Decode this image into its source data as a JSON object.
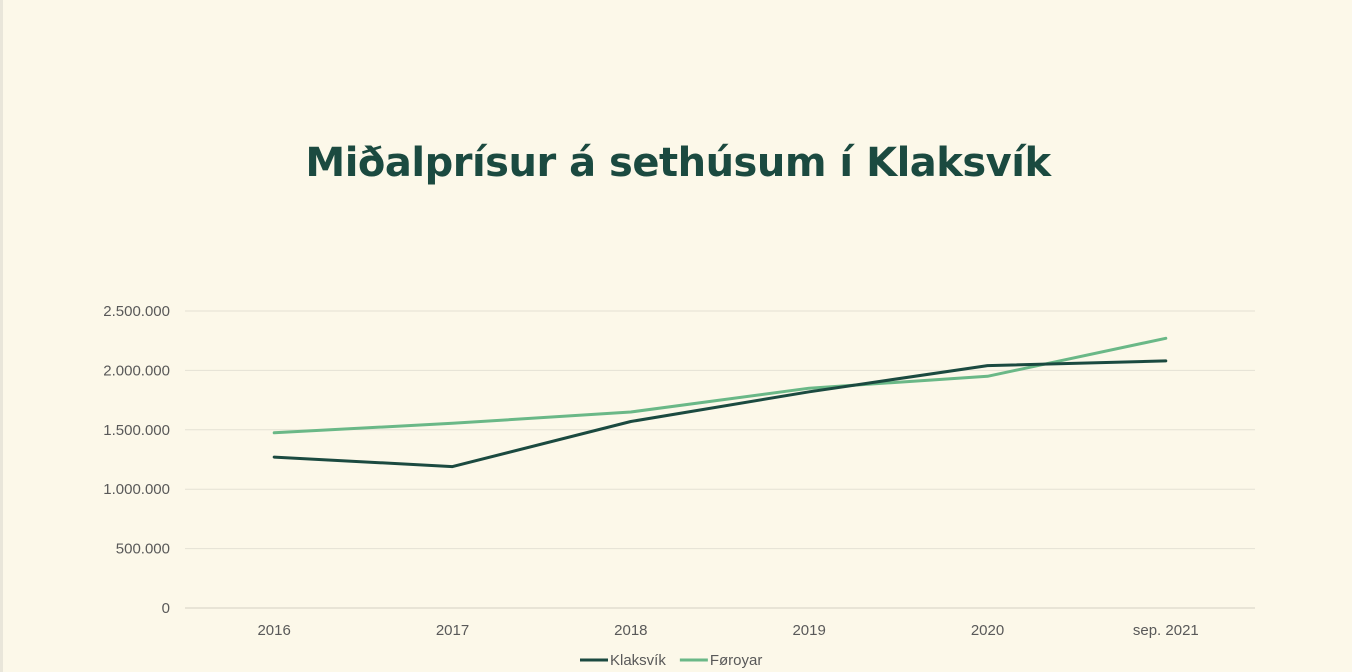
{
  "chart_data": {
    "type": "line",
    "title": "Miðalprísur á sethúsum í Klaksvík",
    "categories": [
      "2016",
      "2017",
      "2018",
      "2019",
      "2020",
      "sep. 2021"
    ],
    "series": [
      {
        "name": "Klaksvík",
        "color": "#1b4a40",
        "values": [
          1270000,
          1190000,
          1570000,
          1820000,
          2040000,
          2080000
        ]
      },
      {
        "name": "Føroyar",
        "color": "#6ab887",
        "values": [
          1475000,
          1555000,
          1650000,
          1850000,
          1950000,
          2270000
        ]
      }
    ],
    "ylim": [
      0,
      2500000
    ],
    "yticks": [
      0,
      500000,
      1000000,
      1500000,
      2000000,
      2500000
    ],
    "ytick_labels": [
      "0",
      "500.000",
      "1.000.000",
      "1.500.000",
      "2.000.000",
      "2.500.000"
    ],
    "grid": true,
    "legend_position": "bottom"
  }
}
